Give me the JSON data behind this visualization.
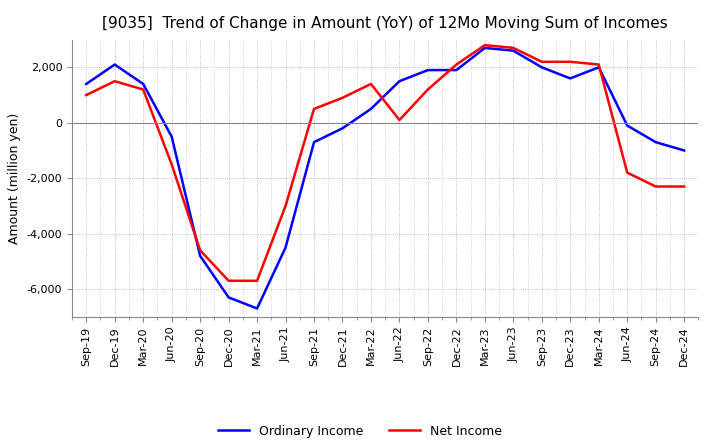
{
  "title": "[9035]  Trend of Change in Amount (YoY) of 12Mo Moving Sum of Incomes",
  "ylabel": "Amount (million yen)",
  "ylim": [
    -7000,
    3000
  ],
  "yticks": [
    -6000,
    -4000,
    -2000,
    0,
    2000
  ],
  "x_labels": [
    "Sep-19",
    "Dec-19",
    "Mar-20",
    "Jun-20",
    "Sep-20",
    "Dec-20",
    "Mar-21",
    "Jun-21",
    "Sep-21",
    "Dec-21",
    "Mar-22",
    "Jun-22",
    "Sep-22",
    "Dec-22",
    "Mar-23",
    "Jun-23",
    "Sep-23",
    "Dec-23",
    "Mar-24",
    "Jun-24",
    "Sep-24",
    "Dec-24"
  ],
  "ordinary_income": [
    1400,
    2100,
    1400,
    -500,
    -4800,
    -6300,
    -6700,
    -4500,
    -700,
    -200,
    500,
    1500,
    1900,
    1900,
    2700,
    2600,
    2000,
    1600,
    2000,
    -100,
    -700,
    -1000
  ],
  "net_income": [
    1000,
    1500,
    1200,
    -1500,
    -4600,
    -5700,
    -5700,
    -3000,
    500,
    900,
    1400,
    100,
    1200,
    2100,
    2800,
    2700,
    2200,
    2200,
    2100,
    -1800,
    -2300,
    -2300
  ],
  "ordinary_color": "#0000ff",
  "net_color": "#ff0000",
  "background_color": "#ffffff",
  "grid_color": "#aaaaaa",
  "title_fontsize": 11,
  "axis_fontsize": 9,
  "tick_fontsize": 8,
  "legend_fontsize": 9
}
